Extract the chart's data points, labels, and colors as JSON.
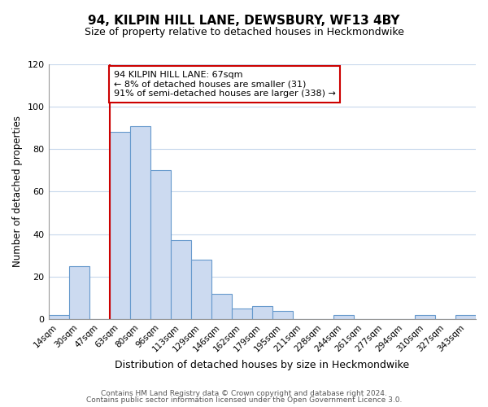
{
  "title": "94, KILPIN HILL LANE, DEWSBURY, WF13 4BY",
  "subtitle": "Size of property relative to detached houses in Heckmondwike",
  "xlabel": "Distribution of detached houses by size in Heckmondwike",
  "ylabel": "Number of detached properties",
  "bar_labels": [
    "14sqm",
    "30sqm",
    "47sqm",
    "63sqm",
    "80sqm",
    "96sqm",
    "113sqm",
    "129sqm",
    "146sqm",
    "162sqm",
    "179sqm",
    "195sqm",
    "211sqm",
    "228sqm",
    "244sqm",
    "261sqm",
    "277sqm",
    "294sqm",
    "310sqm",
    "327sqm",
    "343sqm"
  ],
  "bar_values": [
    2,
    25,
    0,
    88,
    91,
    70,
    37,
    28,
    12,
    5,
    6,
    4,
    0,
    0,
    2,
    0,
    0,
    0,
    2,
    0,
    2
  ],
  "bar_color": "#ccdaf0",
  "bar_edge_color": "#6699cc",
  "property_line_color": "#cc0000",
  "property_line_index": 3,
  "ylim": [
    0,
    120
  ],
  "yticks": [
    0,
    20,
    40,
    60,
    80,
    100,
    120
  ],
  "annotation_text": "94 KILPIN HILL LANE: 67sqm\n← 8% of detached houses are smaller (31)\n91% of semi-detached houses are larger (338) →",
  "annotation_box_color": "#ffffff",
  "annotation_box_edge_color": "#cc0000",
  "footer_line1": "Contains HM Land Registry data © Crown copyright and database right 2024.",
  "footer_line2": "Contains public sector information licensed under the Open Government Licence 3.0.",
  "background_color": "#ffffff",
  "grid_color": "#c8d8ec",
  "title_fontsize": 11,
  "subtitle_fontsize": 9,
  "ylabel_fontsize": 8.5,
  "xlabel_fontsize": 9
}
